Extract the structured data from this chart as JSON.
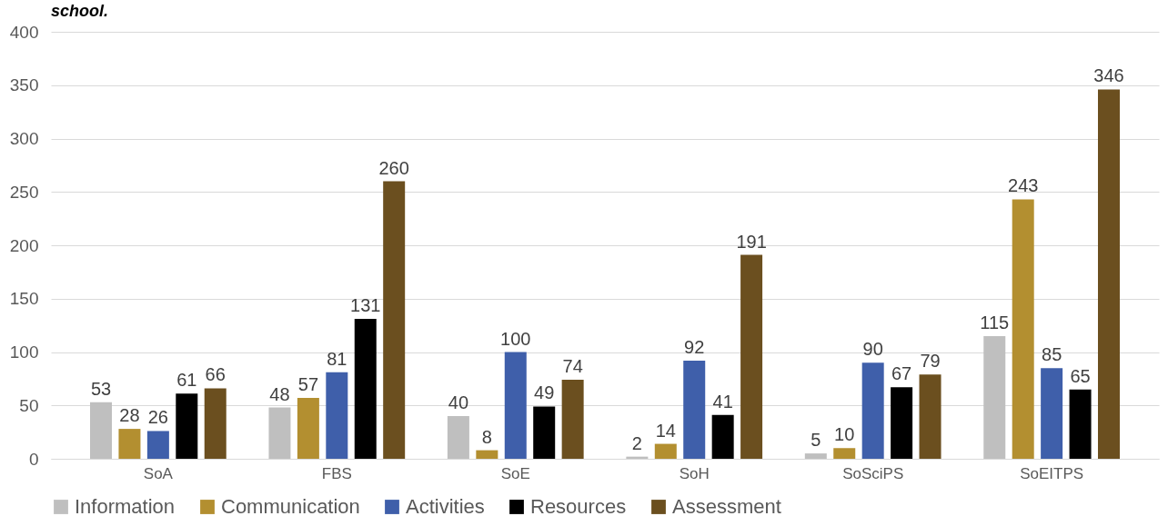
{
  "chart_data": {
    "type": "bar",
    "annotations": [
      "school."
    ],
    "categories": [
      "SoA",
      "FBS",
      "SoE",
      "SoH",
      "SoSciPS",
      "SoEITPS"
    ],
    "series": [
      {
        "name": "Information",
        "color": "#bfbfbf",
        "values": [
          53,
          48,
          40,
          2,
          5,
          115
        ]
      },
      {
        "name": "Communication",
        "color": "#b38f30",
        "values": [
          28,
          57,
          8,
          14,
          10,
          243
        ]
      },
      {
        "name": "Activities",
        "color": "#3f5faa",
        "values": [
          26,
          81,
          100,
          92,
          90,
          85
        ]
      },
      {
        "name": "Resources",
        "color": "#000000",
        "values": [
          61,
          131,
          49,
          41,
          67,
          65
        ]
      },
      {
        "name": "Assessment",
        "color": "#6b4f1f",
        "values": [
          66,
          260,
          74,
          191,
          79,
          346
        ]
      }
    ],
    "ylim": [
      0,
      400
    ],
    "yticks": [
      0,
      50,
      100,
      150,
      200,
      250,
      300,
      350,
      400
    ],
    "grid": "y",
    "legend": "bottom",
    "data_labels": true
  }
}
